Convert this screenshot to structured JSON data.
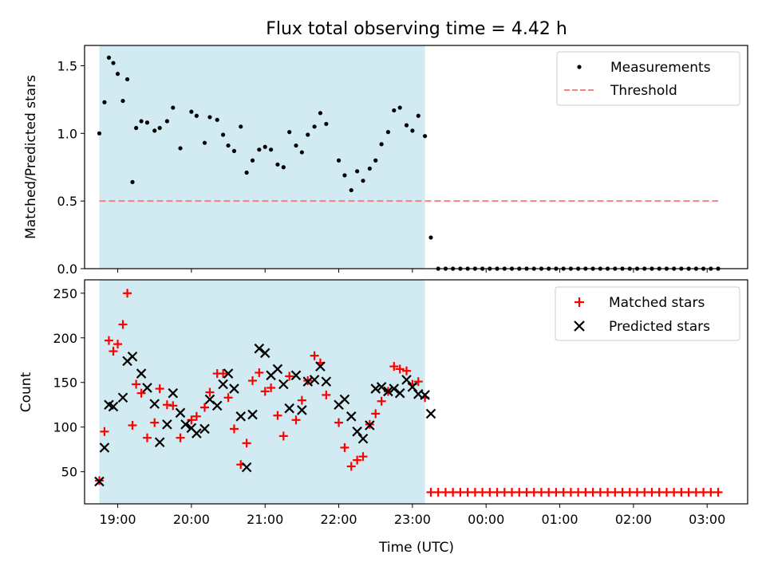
{
  "chart_data": {
    "type": "scatter",
    "title": "Flux total observing time = 4.42 h",
    "xlabel": "Time (UTC)",
    "x_ticks": [
      "19:00",
      "20:00",
      "21:00",
      "22:00",
      "23:00",
      "00:00",
      "01:00",
      "02:00",
      "03:00"
    ],
    "x_range_hours": [
      18.55,
      27.55
    ],
    "observing_window_hours": [
      18.75,
      23.17
    ],
    "shade_color": "#add8e6",
    "top_panel": {
      "ylabel": "Matched/Predicted stars",
      "ylim": [
        0,
        1.65
      ],
      "y_ticks": [
        "0.0",
        "0.5",
        "1.0",
        "1.5"
      ],
      "legend_position": "upper right",
      "series": [
        {
          "name": "Measurements",
          "marker": "dot",
          "color": "#000000",
          "x": [
            18.75,
            18.82,
            18.88,
            18.94,
            19.0,
            19.07,
            19.13,
            19.2,
            19.25,
            19.32,
            19.4,
            19.5,
            19.57,
            19.67,
            19.75,
            19.85,
            20.0,
            20.07,
            20.18,
            20.25,
            20.35,
            20.43,
            20.5,
            20.58,
            20.67,
            20.75,
            20.83,
            20.92,
            21.0,
            21.08,
            21.17,
            21.25,
            21.33,
            21.42,
            21.5,
            21.58,
            21.67,
            21.75,
            21.83,
            22.0,
            22.08,
            22.17,
            22.25,
            22.33,
            22.42,
            22.5,
            22.58,
            22.67,
            22.75,
            22.83,
            22.92,
            23.0,
            23.08,
            23.17,
            23.25,
            23.35,
            23.45,
            23.55,
            23.65,
            23.75,
            23.85,
            23.95,
            24.05,
            24.15,
            24.25,
            24.35,
            24.45,
            24.55,
            24.65,
            24.75,
            24.85,
            24.95,
            25.05,
            25.15,
            25.25,
            25.35,
            25.45,
            25.55,
            25.65,
            25.75,
            25.85,
            25.95,
            26.05,
            26.15,
            26.25,
            26.35,
            26.45,
            26.55,
            26.65,
            26.75,
            26.85,
            26.95,
            27.05,
            27.15
          ],
          "y": [
            1.0,
            1.23,
            1.56,
            1.52,
            1.44,
            1.24,
            1.4,
            0.64,
            1.04,
            1.09,
            1.08,
            1.02,
            1.04,
            1.09,
            1.19,
            0.89,
            1.16,
            1.13,
            0.93,
            1.12,
            1.1,
            0.99,
            0.91,
            0.87,
            1.05,
            0.71,
            0.8,
            0.88,
            0.9,
            0.88,
            0.77,
            0.75,
            1.01,
            0.91,
            0.86,
            0.99,
            1.05,
            1.15,
            1.07,
            0.8,
            0.69,
            0.58,
            0.72,
            0.65,
            0.74,
            0.8,
            0.92,
            1.01,
            1.17,
            1.19,
            1.06,
            1.02,
            1.13,
            0.98,
            0.23,
            0,
            0,
            0,
            0,
            0,
            0,
            0,
            0,
            0,
            0,
            0,
            0,
            0,
            0,
            0,
            0,
            0,
            0,
            0,
            0,
            0,
            0,
            0,
            0,
            0,
            0,
            0,
            0,
            0,
            0,
            0,
            0,
            0,
            0,
            0,
            0,
            0,
            0,
            0
          ]
        },
        {
          "name": "Threshold",
          "marker": "dashed-line",
          "color": "#ff7f7f",
          "x": [
            18.75,
            27.15
          ],
          "y": [
            0.5,
            0.5
          ]
        }
      ]
    },
    "bottom_panel": {
      "ylabel": "Count",
      "ylim": [
        14,
        265
      ],
      "y_ticks": [
        "50",
        "100",
        "150",
        "200",
        "250"
      ],
      "legend_position": "upper right",
      "series": [
        {
          "name": "Matched stars",
          "marker": "plus",
          "color": "#ff0000",
          "x": [
            18.75,
            18.82,
            18.88,
            18.94,
            19.0,
            19.07,
            19.13,
            19.2,
            19.25,
            19.32,
            19.4,
            19.5,
            19.57,
            19.67,
            19.75,
            19.85,
            20.0,
            20.07,
            20.18,
            20.25,
            20.35,
            20.43,
            20.5,
            20.58,
            20.67,
            20.75,
            20.83,
            20.92,
            21.0,
            21.08,
            21.17,
            21.25,
            21.33,
            21.42,
            21.5,
            21.58,
            21.67,
            21.75,
            21.83,
            22.0,
            22.08,
            22.17,
            22.25,
            22.33,
            22.42,
            22.5,
            22.58,
            22.67,
            22.75,
            22.83,
            22.92,
            23.0,
            23.08,
            23.17,
            23.25,
            23.35,
            23.45,
            23.55,
            23.65,
            23.75,
            23.85,
            23.95,
            24.05,
            24.15,
            24.25,
            24.35,
            24.45,
            24.55,
            24.65,
            24.75,
            24.85,
            24.95,
            25.05,
            25.15,
            25.25,
            25.35,
            25.45,
            25.55,
            25.65,
            25.75,
            25.85,
            25.95,
            26.05,
            26.15,
            26.25,
            26.35,
            26.45,
            26.55,
            26.65,
            26.75,
            26.85,
            26.95,
            27.05,
            27.15
          ],
          "y": [
            40,
            95,
            197,
            185,
            193,
            215,
            250,
            102,
            148,
            138,
            88,
            105,
            143,
            125,
            124,
            88,
            108,
            112,
            122,
            139,
            160,
            160,
            133,
            98,
            58,
            82,
            152,
            161,
            140,
            144,
            113,
            90,
            157,
            108,
            130,
            152,
            180,
            172,
            136,
            105,
            77,
            56,
            63,
            67,
            103,
            115,
            129,
            140,
            168,
            165,
            163,
            148,
            151,
            133,
            27,
            27,
            27,
            27,
            27,
            27,
            27,
            27,
            27,
            27,
            27,
            27,
            27,
            27,
            27,
            27,
            27,
            27,
            27,
            27,
            27,
            27,
            27,
            27,
            27,
            27,
            27,
            27,
            27,
            27,
            27,
            27,
            27,
            27,
            27,
            27,
            27,
            27,
            27,
            27
          ]
        },
        {
          "name": "Predicted stars",
          "marker": "x",
          "color": "#000000",
          "x": [
            18.75,
            18.82,
            18.88,
            18.94,
            19.07,
            19.13,
            19.2,
            19.32,
            19.4,
            19.5,
            19.57,
            19.67,
            19.75,
            19.85,
            19.92,
            20.0,
            20.07,
            20.18,
            20.25,
            20.35,
            20.43,
            20.5,
            20.58,
            20.67,
            20.75,
            20.83,
            20.92,
            21.0,
            21.08,
            21.17,
            21.25,
            21.33,
            21.42,
            21.5,
            21.58,
            21.67,
            21.75,
            21.83,
            22.0,
            22.08,
            22.17,
            22.25,
            22.33,
            22.42,
            22.5,
            22.58,
            22.67,
            22.75,
            22.83,
            22.92,
            23.0,
            23.08,
            23.17,
            23.25
          ],
          "y": [
            39,
            77,
            125,
            123,
            133,
            174,
            179,
            160,
            144,
            126,
            83,
            103,
            138,
            116,
            103,
            99,
            93,
            98,
            131,
            124,
            148,
            160,
            143,
            112,
            55,
            114,
            188,
            183,
            158,
            165,
            148,
            121,
            158,
            119,
            151,
            153,
            168,
            151,
            125,
            131,
            112,
            95,
            87,
            102,
            143,
            145,
            140,
            143,
            138,
            153,
            145,
            137,
            136,
            115
          ]
        }
      ]
    }
  }
}
